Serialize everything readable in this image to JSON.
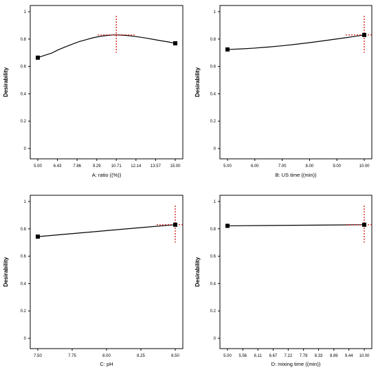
{
  "chart_data": [
    {
      "type": "line",
      "ylabel": "Desirability",
      "xlabel": "A: ratio ((%))",
      "x_ticks": [
        "5.00",
        "6.43",
        "7.86",
        "9.29",
        "10.71",
        "12.14",
        "13.57",
        "15.00"
      ],
      "y_ticks": [
        "0",
        "0.2",
        "0.4",
        "0.6",
        "0.8",
        "1"
      ],
      "xlim": [
        5.0,
        15.0
      ],
      "ylim": [
        0,
        1
      ],
      "curve": {
        "x": [
          5.0,
          5.5,
          6.0,
          6.5,
          7.0,
          7.5,
          8.0,
          8.5,
          9.0,
          9.5,
          10.0,
          10.5,
          10.71,
          11.0,
          11.5,
          12.0,
          12.5,
          13.0,
          13.5,
          14.0,
          14.5,
          15.0
        ],
        "y": [
          0.664,
          0.681,
          0.697,
          0.722,
          0.743,
          0.762,
          0.781,
          0.795,
          0.809,
          0.819,
          0.826,
          0.83,
          0.83,
          0.829,
          0.826,
          0.82,
          0.813,
          0.805,
          0.796,
          0.787,
          0.779,
          0.769
        ]
      },
      "endpoints": [
        {
          "x": 5.0,
          "y": 0.664
        },
        {
          "x": 15.0,
          "y": 0.769
        }
      ],
      "optimum": {
        "x": 10.71,
        "y": 0.83
      }
    },
    {
      "type": "line",
      "ylabel": "Desirability",
      "xlabel": "B: US time ((min))",
      "x_ticks": [
        "5.00",
        "6.00",
        "7.00",
        "8.00",
        "9.00",
        "10.00"
      ],
      "y_ticks": [
        "0",
        "0.2",
        "0.4",
        "0.6",
        "0.8",
        "1"
      ],
      "xlim": [
        5.0,
        10.0
      ],
      "ylim": [
        0,
        1
      ],
      "curve": {
        "x": [
          5.0,
          5.5,
          6.0,
          6.5,
          7.0,
          7.5,
          8.0,
          8.5,
          9.0,
          9.5,
          10.0
        ],
        "y": [
          0.724,
          0.728,
          0.734,
          0.742,
          0.751,
          0.762,
          0.774,
          0.787,
          0.801,
          0.815,
          0.83
        ]
      },
      "endpoints": [
        {
          "x": 5.0,
          "y": 0.724
        },
        {
          "x": 10.0,
          "y": 0.83
        }
      ],
      "optimum": {
        "x": 10.0,
        "y": 0.83
      }
    },
    {
      "type": "line",
      "ylabel": "Desirability",
      "xlabel": "C: pH",
      "x_ticks": [
        "7.50",
        "7.75",
        "8.00",
        "8.25",
        "8.50"
      ],
      "y_ticks": [
        "0",
        "0.2",
        "0.4",
        "0.6",
        "0.8",
        "1"
      ],
      "xlim": [
        7.5,
        8.5
      ],
      "ylim": [
        0,
        1
      ],
      "curve": {
        "x": [
          7.5,
          7.75,
          8.0,
          8.25,
          8.5
        ],
        "y": [
          0.743,
          0.765,
          0.787,
          0.809,
          0.83
        ]
      },
      "endpoints": [
        {
          "x": 7.5,
          "y": 0.743
        },
        {
          "x": 8.5,
          "y": 0.83
        }
      ],
      "optimum": {
        "x": 8.5,
        "y": 0.83
      }
    },
    {
      "type": "line",
      "ylabel": "Desirability",
      "xlabel": "D: mixing time ((min))",
      "x_ticks": [
        "5.00",
        "5.56",
        "6.11",
        "6.67",
        "7.22",
        "7.78",
        "8.33",
        "8.89",
        "9.44",
        "10.00"
      ],
      "y_ticks": [
        "0",
        "0.2",
        "0.4",
        "0.6",
        "0.8",
        "1"
      ],
      "xlim": [
        5.0,
        10.0
      ],
      "ylim": [
        0,
        1
      ],
      "curve": {
        "x": [
          5.0,
          10.0
        ],
        "y": [
          0.822,
          0.83
        ]
      },
      "endpoints": [
        {
          "x": 5.0,
          "y": 0.822
        },
        {
          "x": 10.0,
          "y": 0.83
        }
      ],
      "optimum": {
        "x": 10.0,
        "y": 0.83
      }
    }
  ]
}
